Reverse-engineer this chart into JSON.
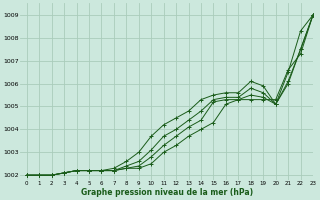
{
  "title": "Graphe pression niveau de la mer (hPa)",
  "bg_color": "#cce8dd",
  "grid_color": "#aaccbb",
  "line_color": "#1a5c1a",
  "xlim": [
    -0.5,
    23
  ],
  "ylim": [
    1001.8,
    1009.5
  ],
  "yticks": [
    1002,
    1003,
    1004,
    1005,
    1006,
    1007,
    1008,
    1009
  ],
  "xticks": [
    0,
    1,
    2,
    3,
    4,
    5,
    6,
    7,
    8,
    9,
    10,
    11,
    12,
    13,
    14,
    15,
    16,
    17,
    18,
    19,
    20,
    21,
    22,
    23
  ],
  "series": [
    [
      1002.0,
      1002.0,
      1002.0,
      1002.1,
      1002.2,
      1002.2,
      1002.2,
      1002.2,
      1002.3,
      1002.3,
      1002.5,
      1003.0,
      1003.3,
      1003.7,
      1004.0,
      1004.3,
      1005.1,
      1005.3,
      1005.3,
      1005.3,
      1005.3,
      1006.6,
      1007.3,
      1009.0
    ],
    [
      1002.0,
      1002.0,
      1002.0,
      1002.1,
      1002.2,
      1002.2,
      1002.2,
      1002.2,
      1002.3,
      1002.4,
      1002.8,
      1003.3,
      1003.7,
      1004.1,
      1004.4,
      1005.2,
      1005.3,
      1005.3,
      1005.5,
      1005.4,
      1005.1,
      1006.0,
      1007.5,
      1009.0
    ],
    [
      1002.0,
      1002.0,
      1002.0,
      1002.1,
      1002.2,
      1002.2,
      1002.2,
      1002.2,
      1002.4,
      1002.6,
      1003.1,
      1003.7,
      1004.0,
      1004.4,
      1004.8,
      1005.3,
      1005.4,
      1005.4,
      1005.8,
      1005.6,
      1005.1,
      1006.1,
      1007.5,
      1009.0
    ],
    [
      1002.0,
      1002.0,
      1002.0,
      1002.1,
      1002.2,
      1002.2,
      1002.2,
      1002.3,
      1002.6,
      1003.0,
      1003.7,
      1004.2,
      1004.5,
      1004.8,
      1005.3,
      1005.5,
      1005.6,
      1005.6,
      1006.1,
      1005.9,
      1005.1,
      1006.5,
      1008.3,
      1009.0
    ]
  ]
}
